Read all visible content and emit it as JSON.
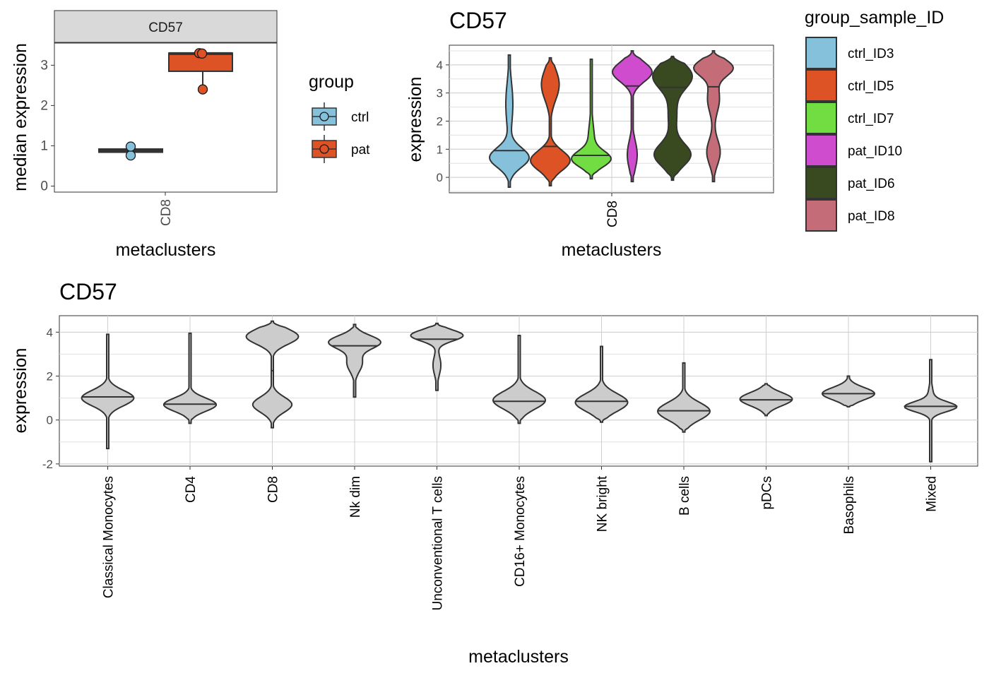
{
  "chart_data": [
    {
      "type": "box",
      "facet_label": "CD57",
      "ylabel": "median  expression",
      "xlabel": "metaclusters",
      "categories": [
        "CD8"
      ],
      "ylim": [
        -0.15,
        3.55
      ],
      "yticks": [
        0,
        1,
        2,
        3
      ],
      "legend": {
        "title": "group",
        "position": "right",
        "entries": [
          {
            "label": "ctrl",
            "color": "#85C1DA"
          },
          {
            "label": "pat",
            "color": "#DE5326"
          }
        ]
      },
      "series": [
        {
          "name": "ctrl",
          "color": "#85C1DA",
          "box": {
            "q1": 0.84,
            "median": 0.88,
            "q3": 0.92,
            "min": 0.84,
            "max": 0.92
          },
          "points": [
            0.76,
            0.98
          ],
          "outliers": []
        },
        {
          "name": "pat",
          "color": "#DE5326",
          "box": {
            "q1": 2.85,
            "median": 3.29,
            "q3": 3.3,
            "min": 2.85,
            "max": 3.3
          },
          "points": [
            3.3,
            3.29,
            2.4
          ],
          "outliers": [
            2.4
          ]
        }
      ]
    },
    {
      "type": "violin",
      "title": "CD57",
      "ylabel": "expression",
      "xlabel": "metaclusters",
      "categories": [
        "CD8"
      ],
      "ylim": [
        -0.55,
        4.7
      ],
      "yticks": [
        0,
        1,
        2,
        3,
        4
      ],
      "legend": {
        "title": "group_sample_ID",
        "position": "right",
        "entries": [
          {
            "label": "ctrl_ID3",
            "color": "#85C1DA"
          },
          {
            "label": "ctrl_ID5",
            "color": "#DE5326"
          },
          {
            "label": "ctrl_ID7",
            "color": "#72DD42"
          },
          {
            "label": "pat_ID10",
            "color": "#D04CCE"
          },
          {
            "label": "pat_ID6",
            "color": "#3A4A20"
          },
          {
            "label": "pat_ID8",
            "color": "#C46D78"
          }
        ]
      },
      "series": [
        {
          "name": "ctrl_ID3",
          "color": "#85C1DA",
          "min": -0.35,
          "max": 4.35,
          "median": 0.95,
          "modes": [
            [
              0.7,
              1.0,
              0.35
            ],
            [
              2.6,
              0.18,
              0.8
            ]
          ]
        },
        {
          "name": "ctrl_ID5",
          "color": "#DE5326",
          "min": -0.3,
          "max": 4.25,
          "median": 1.1,
          "modes": [
            [
              0.6,
              1.0,
              0.35
            ],
            [
              3.3,
              0.45,
              0.55
            ]
          ]
        },
        {
          "name": "ctrl_ID7",
          "color": "#72DD42",
          "min": -0.05,
          "max": 4.2,
          "median": 0.78,
          "modes": [
            [
              0.65,
              1.3,
              0.28
            ],
            [
              1.4,
              0.2,
              0.5
            ],
            [
              3.3,
              0.07,
              0.7
            ]
          ]
        },
        {
          "name": "pat_ID10",
          "color": "#D04CCE",
          "min": -0.15,
          "max": 4.5,
          "median": 3.25,
          "modes": [
            [
              3.75,
              1.0,
              0.35
            ],
            [
              0.8,
              0.25,
              0.5
            ]
          ]
        },
        {
          "name": "pat_ID6",
          "color": "#3A4A20",
          "min": -0.1,
          "max": 4.3,
          "median": 3.2,
          "modes": [
            [
              0.8,
              0.65,
              0.4
            ],
            [
              3.6,
              0.7,
              0.45
            ],
            [
              2.2,
              0.15,
              0.6
            ]
          ]
        },
        {
          "name": "pat_ID8",
          "color": "#C46D78",
          "min": -0.15,
          "max": 4.5,
          "median": 3.22,
          "modes": [
            [
              3.9,
              0.8,
              0.3
            ],
            [
              2.8,
              0.25,
              0.5
            ],
            [
              0.9,
              0.28,
              0.45
            ]
          ]
        }
      ]
    },
    {
      "type": "violin",
      "title": "CD57",
      "ylabel": "expression",
      "xlabel": "metaclusters",
      "ylim": [
        -2.1,
        4.75
      ],
      "yticks": [
        -2,
        0,
        2,
        4
      ],
      "fill": "#CCCCCC",
      "categories": [
        "Classical Monocytes",
        "CD4",
        "CD8",
        "Nk dim",
        "Unconventional T cells",
        "CD16+ Monocytes",
        "NK bright",
        "B cells",
        "pDCs",
        "Basophils",
        "Mixed"
      ],
      "series": [
        {
          "name": "Classical Monocytes",
          "min": -1.3,
          "max": 3.9,
          "median": 1.05,
          "modes": [
            [
              1.0,
              1.0,
              0.35
            ]
          ]
        },
        {
          "name": "CD4",
          "min": -0.15,
          "max": 3.95,
          "median": 0.72,
          "modes": [
            [
              0.7,
              1.0,
              0.3
            ]
          ]
        },
        {
          "name": "CD8",
          "min": -0.35,
          "max": 4.5,
          "median": 2.25,
          "modes": [
            [
              3.8,
              0.6,
              0.35
            ],
            [
              0.7,
              0.45,
              0.35
            ]
          ]
        },
        {
          "name": "Nk dim",
          "min": 1.05,
          "max": 4.35,
          "median": 3.38,
          "modes": [
            [
              3.55,
              1.0,
              0.3
            ],
            [
              2.6,
              0.3,
              0.4
            ]
          ]
        },
        {
          "name": "Unconventional T cells",
          "min": 1.35,
          "max": 4.4,
          "median": 3.68,
          "modes": [
            [
              3.85,
              1.0,
              0.25
            ],
            [
              2.5,
              0.15,
              0.45
            ]
          ]
        },
        {
          "name": "CD16+ Monocytes",
          "min": -0.15,
          "max": 3.85,
          "median": 0.85,
          "modes": [
            [
              0.9,
              1.0,
              0.4
            ]
          ]
        },
        {
          "name": "NK bright",
          "min": -0.1,
          "max": 3.35,
          "median": 0.85,
          "modes": [
            [
              0.8,
              1.0,
              0.4
            ]
          ]
        },
        {
          "name": "B cells",
          "min": -0.55,
          "max": 2.6,
          "median": 0.42,
          "modes": [
            [
              0.4,
              1.0,
              0.4
            ]
          ]
        },
        {
          "name": "pDCs",
          "min": 0.2,
          "max": 1.65,
          "median": 0.92,
          "modes": [
            [
              0.95,
              1.0,
              0.3
            ]
          ]
        },
        {
          "name": "Basophils",
          "min": 0.6,
          "max": 2.0,
          "median": 1.2,
          "modes": [
            [
              1.2,
              1.0,
              0.28
            ]
          ]
        },
        {
          "name": "Mixed",
          "min": -1.9,
          "max": 2.75,
          "median": 0.62,
          "modes": [
            [
              0.6,
              1.3,
              0.22
            ],
            [
              1.0,
              0.15,
              0.5
            ]
          ]
        }
      ]
    }
  ]
}
